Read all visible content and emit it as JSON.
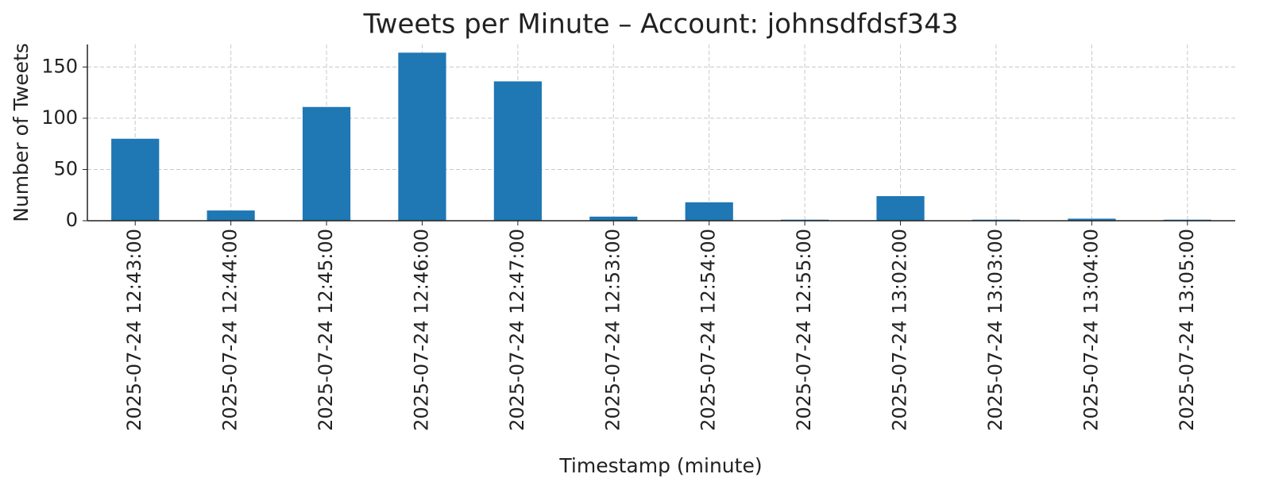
{
  "chart_data": {
    "type": "bar",
    "title": "Tweets per Minute – Account: johnsdfdsf343",
    "x_label": "Timestamp (minute)",
    "y_label": "Number of Tweets",
    "categories": [
      "2025-07-24 12:43:00",
      "2025-07-24 12:44:00",
      "2025-07-24 12:45:00",
      "2025-07-24 12:46:00",
      "2025-07-24 12:47:00",
      "2025-07-24 12:53:00",
      "2025-07-24 12:54:00",
      "2025-07-24 12:55:00",
      "2025-07-24 13:02:00",
      "2025-07-24 13:03:00",
      "2025-07-24 13:04:00",
      "2025-07-24 13:05:00"
    ],
    "values": [
      80,
      10,
      111,
      164,
      136,
      4,
      18,
      1,
      24,
      1,
      2,
      1
    ],
    "color": "#1f77b4",
    "ylim": [
      0,
      172
    ],
    "yticks": [
      0,
      50,
      100,
      150
    ],
    "grid": true
  }
}
